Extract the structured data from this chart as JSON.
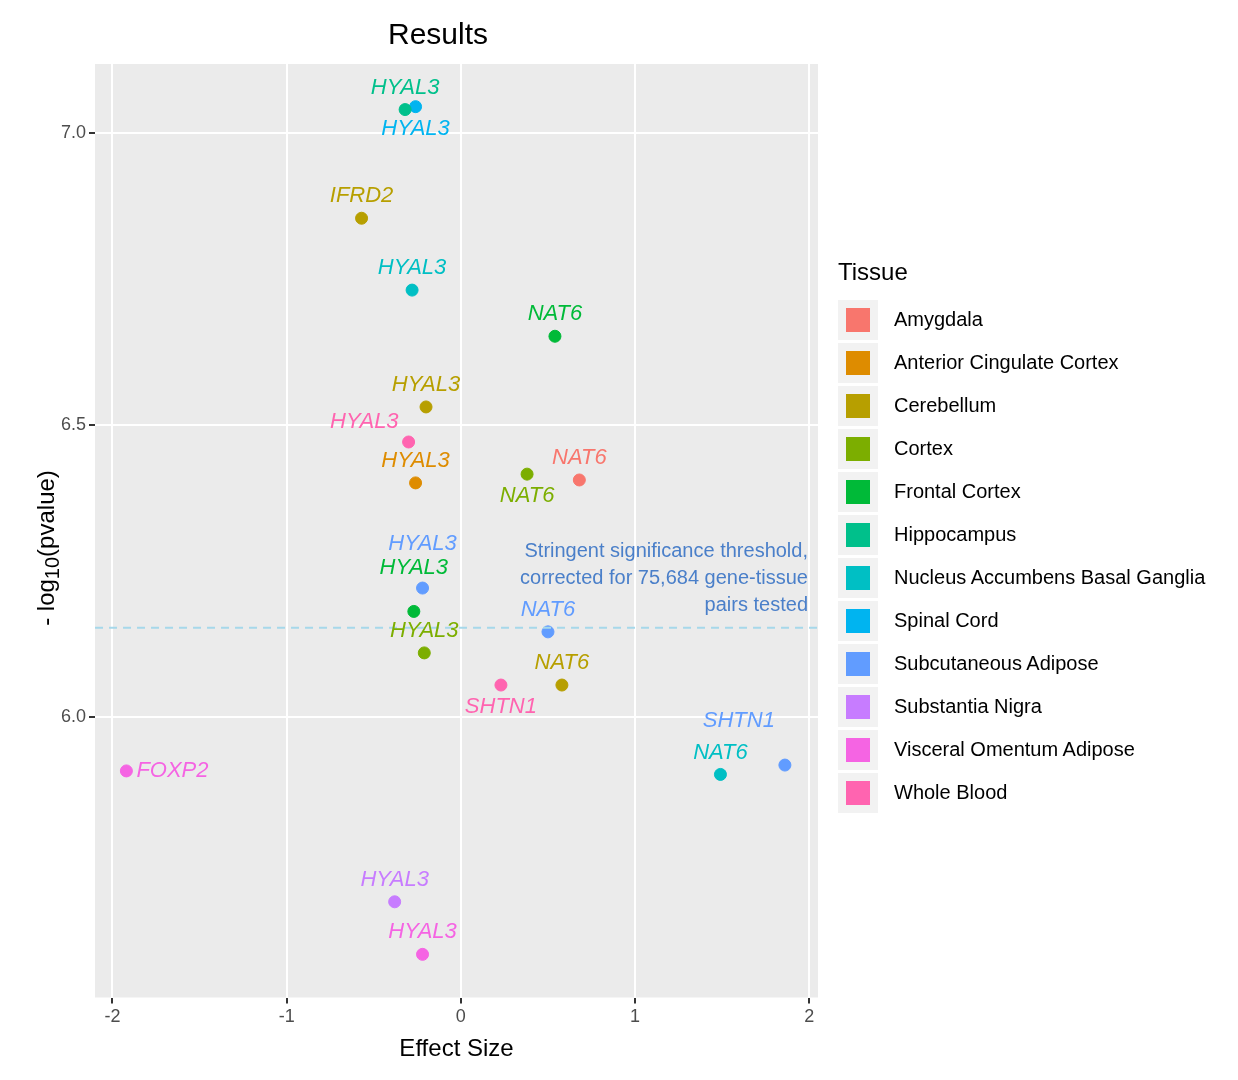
{
  "chart_data": {
    "type": "scatter",
    "title": "Results",
    "xlabel": "Effect Size",
    "ylabel": "- log$_{10}$(pvalue)",
    "legend_title": "Tissue",
    "legend": "right",
    "grid": true,
    "marker": "circle",
    "xlim": [
      -2.1,
      2.05
    ],
    "xticks": [
      -2,
      -1,
      0,
      1,
      2
    ],
    "ylim": [
      5.52,
      7.118
    ],
    "yticks": [
      {
        "value": 6,
        "label": "6.0"
      },
      {
        "value": 6.5,
        "label": "6.5"
      },
      {
        "value": 7,
        "label": "7.0"
      }
    ],
    "ref_lines": [
      {
        "axis": "y",
        "value": 6.153,
        "label": "Stringent significance threshold, corrected for 75,684 gene-tissue pairs tested",
        "color": "#a6d8ea",
        "line_style": "dashed"
      }
    ],
    "series": [
      {
        "name": "Amygdala",
        "color": "#f8766d",
        "x": [
          0.68
        ],
        "values": [
          6.406
        ],
        "value_labels": [
          "NAT6"
        ]
      },
      {
        "name": "Anterior Cingulate Cortex",
        "color": "#de8c00",
        "x": [
          -0.26
        ],
        "values": [
          6.401
        ],
        "value_labels": [
          "HYAL3"
        ]
      },
      {
        "name": "Cerebellum",
        "color": "#b79f00",
        "x": [
          -0.57,
          -0.2,
          0.58
        ],
        "values": [
          6.854,
          6.531,
          6.055
        ],
        "value_labels": [
          "IFRD2",
          "HYAL3",
          "NAT6"
        ]
      },
      {
        "name": "Cortex",
        "color": "#7cae00",
        "x": [
          0.38,
          -0.21
        ],
        "values": [
          6.416,
          6.11
        ],
        "value_labels": [
          "NAT6",
          "HYAL3"
        ]
      },
      {
        "name": "Frontal Cortex",
        "color": "#00ba38",
        "x": [
          0.54,
          -0.27
        ],
        "values": [
          6.652,
          6.181
        ],
        "value_labels": [
          "NAT6",
          "HYAL3"
        ]
      },
      {
        "name": "Hippocampus",
        "color": "#00c08b",
        "x": [
          -0.32
        ],
        "values": [
          7.04
        ],
        "value_labels": [
          "HYAL3"
        ]
      },
      {
        "name": "Nucleus Accumbens Basal Ganglia",
        "color": "#00bfc4",
        "x": [
          -0.28,
          1.49
        ],
        "values": [
          6.731,
          5.902
        ],
        "value_labels": [
          "HYAL3",
          "NAT6"
        ]
      },
      {
        "name": "Spinal Cord",
        "color": "#00b4f0",
        "x": [
          -0.26
        ],
        "values": [
          7.045
        ],
        "value_labels": [
          "HYAL3"
        ]
      },
      {
        "name": "Subcutaneous Adipose",
        "color": "#619cff",
        "x": [
          -0.22,
          0.5,
          1.86
        ],
        "values": [
          6.221,
          6.146,
          5.918
        ],
        "value_labels": [
          "HYAL3",
          "NAT6",
          "SHTN1"
        ]
      },
      {
        "name": "Substantia Nigra",
        "color": "#c77cff",
        "x": [
          -0.38
        ],
        "values": [
          5.684
        ],
        "value_labels": [
          "HYAL3"
        ]
      },
      {
        "name": "Visceral Omentum Adipose",
        "color": "#f564e3",
        "x": [
          -1.92,
          -0.22
        ],
        "values": [
          5.908,
          5.594
        ],
        "value_labels": [
          "FOXP2",
          "HYAL3"
        ]
      },
      {
        "name": "Whole Blood",
        "color": "#ff64b0",
        "x": [
          -0.3,
          0.23
        ],
        "values": [
          6.471,
          6.055
        ],
        "value_labels": [
          "HYAL3",
          "SHTN1"
        ]
      }
    ]
  }
}
